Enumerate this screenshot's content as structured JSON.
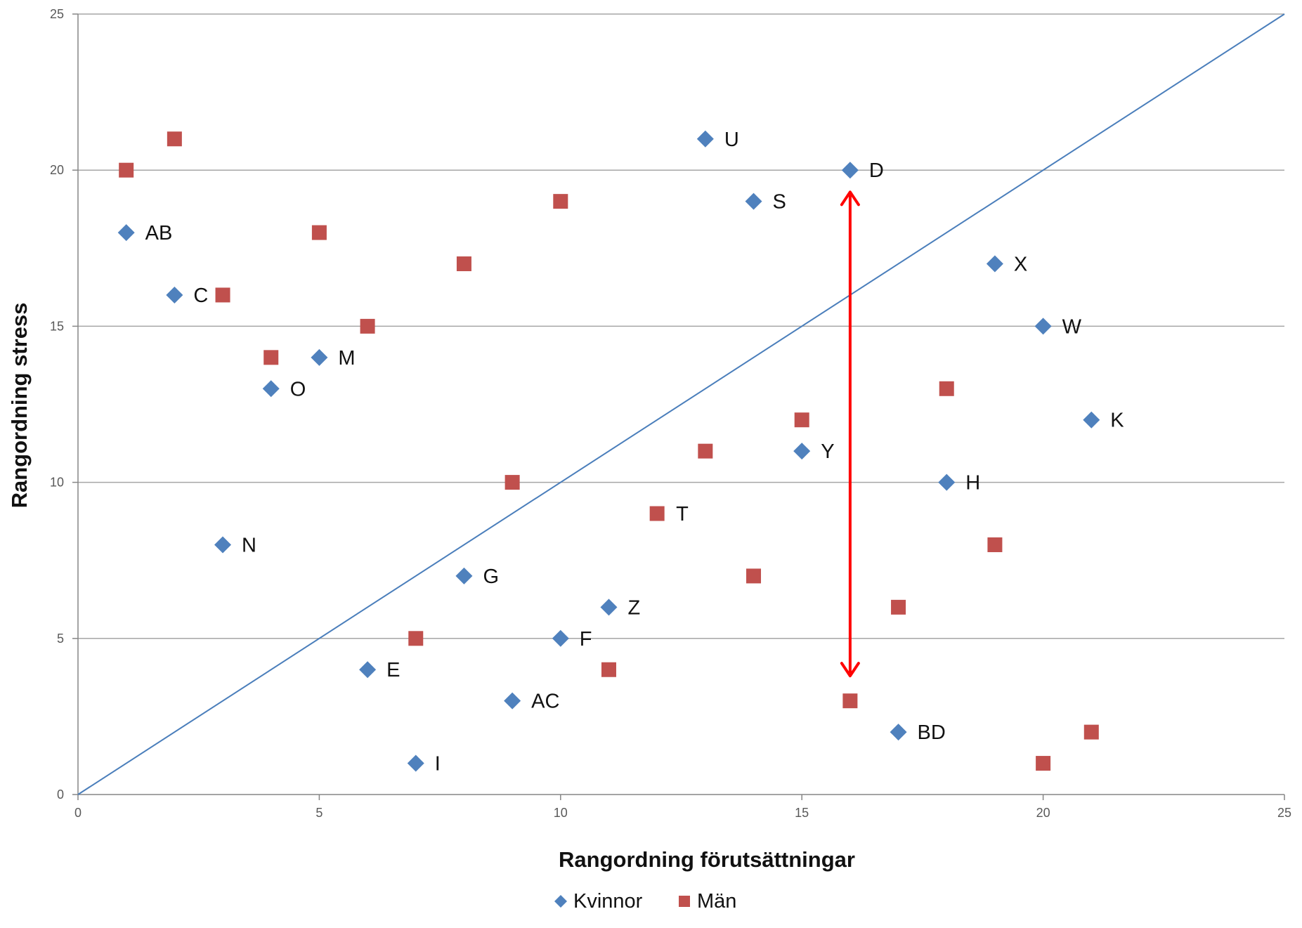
{
  "chart_data": {
    "type": "scatter",
    "xlabel": "Rangordning förutsättningar",
    "ylabel": "Rangordning stress",
    "xlim": [
      0,
      25
    ],
    "ylim": [
      0,
      25
    ],
    "x_ticks": [
      0,
      5,
      10,
      15,
      20,
      25
    ],
    "y_ticks": [
      0,
      5,
      10,
      15,
      20,
      25
    ],
    "grid": "horizontal",
    "legend_position": "bottom",
    "reference_line": {
      "from": [
        0,
        0
      ],
      "to": [
        25,
        25
      ],
      "color": "#4a7ebb"
    },
    "arrow": {
      "x": 16,
      "y_from": 3.8,
      "y_to": 19.3,
      "color": "#ff0000",
      "double_headed": true
    },
    "series": [
      {
        "name": "Kvinnor",
        "marker": "diamond",
        "color": "#4f81bd",
        "points": [
          {
            "x": 13,
            "y": 21,
            "label": "U"
          },
          {
            "x": 16,
            "y": 20,
            "label": "D"
          },
          {
            "x": 14,
            "y": 19,
            "label": "S"
          },
          {
            "x": 1,
            "y": 18,
            "label": "AB"
          },
          {
            "x": 19,
            "y": 17,
            "label": "X"
          },
          {
            "x": 2,
            "y": 16,
            "label": "C"
          },
          {
            "x": 20,
            "y": 15,
            "label": "W"
          },
          {
            "x": 5,
            "y": 14,
            "label": "M"
          },
          {
            "x": 4,
            "y": 13,
            "label": "O"
          },
          {
            "x": 21,
            "y": 12,
            "label": "K"
          },
          {
            "x": 15,
            "y": 11,
            "label": "Y"
          },
          {
            "x": 18,
            "y": 10,
            "label": "H"
          },
          {
            "x": 3,
            "y": 8,
            "label": "N"
          },
          {
            "x": 8,
            "y": 7,
            "label": "G"
          },
          {
            "x": 11,
            "y": 6,
            "label": "Z"
          },
          {
            "x": 10,
            "y": 5,
            "label": "F"
          },
          {
            "x": 6,
            "y": 4,
            "label": "E"
          },
          {
            "x": 9,
            "y": 3,
            "label": "AC"
          },
          {
            "x": 17,
            "y": 2,
            "label": "BD"
          },
          {
            "x": 7,
            "y": 1,
            "label": "I"
          }
        ]
      },
      {
        "name": "Män",
        "marker": "square",
        "color": "#c0504d",
        "points": [
          {
            "x": 2,
            "y": 21
          },
          {
            "x": 1,
            "y": 20
          },
          {
            "x": 10,
            "y": 19
          },
          {
            "x": 5,
            "y": 18
          },
          {
            "x": 8,
            "y": 17
          },
          {
            "x": 3,
            "y": 16
          },
          {
            "x": 6,
            "y": 15
          },
          {
            "x": 4,
            "y": 14
          },
          {
            "x": 18,
            "y": 13
          },
          {
            "x": 15,
            "y": 12
          },
          {
            "x": 13,
            "y": 11
          },
          {
            "x": 9,
            "y": 10
          },
          {
            "x": 12,
            "y": 9,
            "label": "T"
          },
          {
            "x": 19,
            "y": 8
          },
          {
            "x": 14,
            "y": 7
          },
          {
            "x": 17,
            "y": 6
          },
          {
            "x": 7,
            "y": 5
          },
          {
            "x": 11,
            "y": 4
          },
          {
            "x": 16,
            "y": 3
          },
          {
            "x": 21,
            "y": 2
          },
          {
            "x": 20,
            "y": 1
          }
        ]
      }
    ]
  }
}
